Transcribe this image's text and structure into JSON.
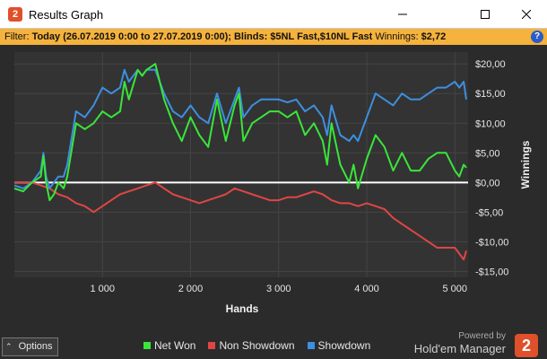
{
  "window": {
    "title": "Results Graph"
  },
  "filter": {
    "label": "Filter:",
    "text": "Today (26.07.2019 0:00 to 27.07.2019 0:00); Blinds: $5NL Fast,$10NL Fast",
    "winnings_label": "Winnings:",
    "winnings_value": "$2,72"
  },
  "footer": {
    "options_label": "Options",
    "powered_by": "Powered by",
    "brand": "Hold'em Manager",
    "brand_logo": "2"
  },
  "colors": {
    "net_won": "#39e639",
    "non_showdown": "#e04545",
    "showdown": "#3d8fe0",
    "zero_line": "#ffffff"
  },
  "chart_data": {
    "type": "line",
    "xlabel": "Hands",
    "ylabel": "Winnings",
    "xlim": [
      0,
      5150
    ],
    "ylim": [
      -16,
      22
    ],
    "x_ticks": [
      1000,
      2000,
      3000,
      4000,
      5000
    ],
    "x_tick_labels": [
      "1 000",
      "2 000",
      "3 000",
      "4 000",
      "5 000"
    ],
    "y_ticks": [
      20,
      15,
      10,
      5,
      0,
      -5,
      -10,
      -15
    ],
    "y_tick_labels": [
      "$20,00",
      "$15,00",
      "$10,00",
      "$5,00",
      "$0,00",
      "-$5,00",
      "-$10,00",
      "-$15,00"
    ],
    "grid": true,
    "legend_position": "bottom",
    "series": [
      {
        "name": "Net Won",
        "x": [
          0,
          100,
          200,
          300,
          330,
          360,
          400,
          450,
          500,
          560,
          600,
          700,
          800,
          900,
          1000,
          1100,
          1200,
          1250,
          1300,
          1400,
          1450,
          1500,
          1600,
          1700,
          1800,
          1900,
          1950,
          2000,
          2100,
          2200,
          2300,
          2400,
          2500,
          2550,
          2600,
          2700,
          2800,
          2900,
          3000,
          3100,
          3200,
          3300,
          3400,
          3500,
          3550,
          3600,
          3700,
          3800,
          3850,
          3900,
          4000,
          4100,
          4200,
          4300,
          4400,
          4500,
          4600,
          4700,
          4800,
          4900,
          5000,
          5050,
          5100,
          5130
        ],
        "y": [
          -1,
          -1.5,
          0,
          1,
          4.5,
          0,
          -3,
          -2,
          0,
          -1,
          1,
          10,
          9,
          10,
          12,
          11,
          12,
          17,
          14,
          19,
          18,
          19,
          20,
          14,
          10,
          7,
          9,
          11,
          8,
          6,
          14,
          7,
          13,
          15,
          7,
          10,
          11,
          12,
          12,
          11,
          12,
          8,
          10,
          7,
          3,
          10,
          3,
          0,
          3,
          -1,
          4,
          8,
          6,
          2,
          5,
          2,
          2,
          4,
          5,
          5,
          2,
          1,
          3,
          2.5
        ]
      },
      {
        "name": "Non Showdown",
        "x": [
          0,
          100,
          200,
          300,
          400,
          500,
          600,
          700,
          800,
          900,
          1000,
          1100,
          1200,
          1300,
          1400,
          1500,
          1600,
          1700,
          1800,
          1900,
          2000,
          2100,
          2200,
          2300,
          2400,
          2500,
          2600,
          2700,
          2800,
          2900,
          3000,
          3100,
          3200,
          3300,
          3400,
          3500,
          3600,
          3700,
          3800,
          3900,
          4000,
          4100,
          4200,
          4300,
          4400,
          4500,
          4600,
          4700,
          4800,
          4900,
          5000,
          5050,
          5100,
          5130
        ],
        "y": [
          0,
          0,
          0,
          -0.5,
          -1,
          -2,
          -2.5,
          -3.5,
          -4,
          -5,
          -4,
          -3,
          -2,
          -1.5,
          -1,
          -0.5,
          0,
          -1,
          -2,
          -2.5,
          -3,
          -3.5,
          -3,
          -2.5,
          -2,
          -1,
          -1.5,
          -2,
          -2.5,
          -3,
          -3,
          -2.5,
          -2.5,
          -2,
          -1.5,
          -2,
          -3,
          -3.5,
          -3.5,
          -4,
          -3.5,
          -4,
          -4.5,
          -6,
          -7,
          -8,
          -9,
          -10,
          -11,
          -11,
          -11,
          -12,
          -13,
          -11.5
        ]
      },
      {
        "name": "Showdown",
        "x": [
          0,
          100,
          200,
          300,
          330,
          360,
          400,
          450,
          500,
          560,
          600,
          700,
          800,
          900,
          1000,
          1100,
          1200,
          1250,
          1300,
          1400,
          1450,
          1500,
          1600,
          1700,
          1800,
          1900,
          1950,
          2000,
          2100,
          2200,
          2300,
          2400,
          2500,
          2550,
          2600,
          2700,
          2800,
          2900,
          3000,
          3100,
          3200,
          3300,
          3400,
          3500,
          3550,
          3600,
          3700,
          3800,
          3850,
          3900,
          4000,
          4100,
          4200,
          4300,
          4400,
          4500,
          4600,
          4700,
          4800,
          4900,
          5000,
          5050,
          5100,
          5130
        ],
        "y": [
          -0.5,
          -1,
          0,
          2,
          5,
          1,
          -1,
          0,
          1,
          1,
          3,
          12,
          11,
          13,
          16,
          15,
          16,
          19,
          17,
          19,
          18,
          19,
          19,
          15,
          12,
          11,
          12,
          13,
          11,
          10,
          15,
          10,
          14,
          16,
          11,
          13,
          14,
          14,
          14,
          13.5,
          14,
          12,
          13,
          11,
          8,
          13,
          8,
          7,
          8,
          7,
          11,
          15,
          14,
          13,
          15,
          14,
          14,
          15,
          16,
          16,
          17,
          16,
          17,
          14
        ]
      }
    ]
  }
}
